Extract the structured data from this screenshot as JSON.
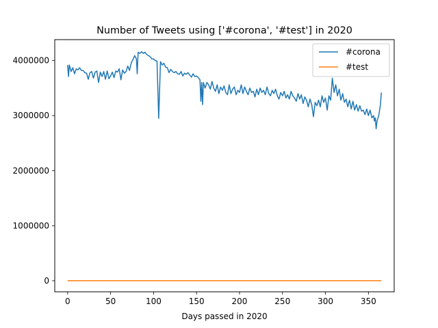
{
  "chart_data": {
    "type": "line",
    "title": "Number of Tweets using ['#corona', '#test'] in 2020",
    "xlabel": "Days passed in 2020",
    "ylabel": "",
    "xlim": [
      -15,
      380
    ],
    "ylim": [
      -200000,
      4380000
    ],
    "xticks": [
      0,
      50,
      100,
      150,
      200,
      250,
      300,
      350
    ],
    "yticks": [
      0,
      1000000,
      2000000,
      3000000,
      4000000
    ],
    "grid": false,
    "legend_position": "top-right",
    "series": [
      {
        "name": "#corona",
        "color": "#1f77b4",
        "points": [
          [
            0,
            3920000
          ],
          [
            1,
            3710000
          ],
          [
            2,
            3920000
          ],
          [
            4,
            3800000
          ],
          [
            6,
            3870000
          ],
          [
            8,
            3760000
          ],
          [
            10,
            3850000
          ],
          [
            12,
            3830000
          ],
          [
            14,
            3870000
          ],
          [
            16,
            3820000
          ],
          [
            18,
            3820000
          ],
          [
            20,
            3780000
          ],
          [
            22,
            3770000
          ],
          [
            24,
            3660000
          ],
          [
            26,
            3780000
          ],
          [
            28,
            3800000
          ],
          [
            30,
            3680000
          ],
          [
            32,
            3790000
          ],
          [
            34,
            3810000
          ],
          [
            36,
            3600000
          ],
          [
            38,
            3790000
          ],
          [
            40,
            3710000
          ],
          [
            42,
            3800000
          ],
          [
            44,
            3660000
          ],
          [
            46,
            3810000
          ],
          [
            48,
            3670000
          ],
          [
            50,
            3720000
          ],
          [
            52,
            3790000
          ],
          [
            54,
            3690000
          ],
          [
            56,
            3810000
          ],
          [
            58,
            3790000
          ],
          [
            60,
            3850000
          ],
          [
            62,
            3650000
          ],
          [
            64,
            3830000
          ],
          [
            66,
            3770000
          ],
          [
            68,
            3800000
          ],
          [
            70,
            3900000
          ],
          [
            72,
            3820000
          ],
          [
            74,
            3960000
          ],
          [
            76,
            4020000
          ],
          [
            78,
            4090000
          ],
          [
            80,
            4030000
          ],
          [
            81,
            3760000
          ],
          [
            82,
            4150000
          ],
          [
            84,
            4130000
          ],
          [
            86,
            4160000
          ],
          [
            88,
            4130000
          ],
          [
            90,
            4150000
          ],
          [
            92,
            4110000
          ],
          [
            94,
            4090000
          ],
          [
            96,
            4070000
          ],
          [
            98,
            4030000
          ],
          [
            100,
            4030000
          ],
          [
            102,
            4000000
          ],
          [
            104,
            3990000
          ],
          [
            106,
            2950000
          ],
          [
            108,
            3980000
          ],
          [
            110,
            3920000
          ],
          [
            112,
            3950000
          ],
          [
            114,
            3880000
          ],
          [
            116,
            3870000
          ],
          [
            118,
            3780000
          ],
          [
            120,
            3840000
          ],
          [
            122,
            3800000
          ],
          [
            124,
            3780000
          ],
          [
            126,
            3800000
          ],
          [
            128,
            3760000
          ],
          [
            130,
            3750000
          ],
          [
            132,
            3800000
          ],
          [
            134,
            3720000
          ],
          [
            136,
            3770000
          ],
          [
            138,
            3750000
          ],
          [
            140,
            3780000
          ],
          [
            142,
            3740000
          ],
          [
            144,
            3700000
          ],
          [
            146,
            3760000
          ],
          [
            148,
            3710000
          ],
          [
            150,
            3720000
          ],
          [
            152,
            3690000
          ],
          [
            154,
            3650000
          ],
          [
            155,
            3260000
          ],
          [
            156,
            3600000
          ],
          [
            157,
            3200000
          ],
          [
            158,
            3600000
          ],
          [
            160,
            3500000
          ],
          [
            162,
            3600000
          ],
          [
            164,
            3560000
          ],
          [
            166,
            3480000
          ],
          [
            168,
            3620000
          ],
          [
            170,
            3500000
          ],
          [
            172,
            3440000
          ],
          [
            174,
            3560000
          ],
          [
            176,
            3400000
          ],
          [
            178,
            3520000
          ],
          [
            180,
            3460000
          ],
          [
            182,
            3540000
          ],
          [
            184,
            3420000
          ],
          [
            186,
            3380000
          ],
          [
            188,
            3560000
          ],
          [
            190,
            3400000
          ],
          [
            192,
            3480000
          ],
          [
            194,
            3520000
          ],
          [
            196,
            3380000
          ],
          [
            198,
            3460000
          ],
          [
            200,
            3420000
          ],
          [
            202,
            3560000
          ],
          [
            204,
            3400000
          ],
          [
            206,
            3520000
          ],
          [
            208,
            3440000
          ],
          [
            210,
            3380000
          ],
          [
            212,
            3500000
          ],
          [
            214,
            3420000
          ],
          [
            216,
            3440000
          ],
          [
            218,
            3340000
          ],
          [
            220,
            3480000
          ],
          [
            222,
            3380000
          ],
          [
            224,
            3500000
          ],
          [
            226,
            3420000
          ],
          [
            228,
            3460000
          ],
          [
            230,
            3380000
          ],
          [
            232,
            3520000
          ],
          [
            234,
            3400000
          ],
          [
            236,
            3360000
          ],
          [
            238,
            3460000
          ],
          [
            240,
            3400000
          ],
          [
            242,
            3480000
          ],
          [
            244,
            3360000
          ],
          [
            246,
            3300000
          ],
          [
            248,
            3420000
          ],
          [
            250,
            3360000
          ],
          [
            252,
            3440000
          ],
          [
            254,
            3320000
          ],
          [
            256,
            3380000
          ],
          [
            258,
            3300000
          ],
          [
            260,
            3440000
          ],
          [
            262,
            3360000
          ],
          [
            264,
            3320000
          ],
          [
            266,
            3260000
          ],
          [
            268,
            3400000
          ],
          [
            270,
            3300000
          ],
          [
            272,
            3380000
          ],
          [
            274,
            3220000
          ],
          [
            276,
            3340000
          ],
          [
            278,
            3280000
          ],
          [
            280,
            3160000
          ],
          [
            282,
            3300000
          ],
          [
            284,
            3200000
          ],
          [
            286,
            2980000
          ],
          [
            288,
            3240000
          ],
          [
            290,
            3180000
          ],
          [
            292,
            3280000
          ],
          [
            294,
            3160000
          ],
          [
            296,
            3360000
          ],
          [
            298,
            3240000
          ],
          [
            300,
            3320000
          ],
          [
            302,
            3100000
          ],
          [
            304,
            3360000
          ],
          [
            306,
            3280000
          ],
          [
            308,
            3680000
          ],
          [
            310,
            3420000
          ],
          [
            312,
            3560000
          ],
          [
            314,
            3360000
          ],
          [
            316,
            3480000
          ],
          [
            318,
            3280000
          ],
          [
            320,
            3400000
          ],
          [
            322,
            3240000
          ],
          [
            324,
            3300000
          ],
          [
            326,
            3160000
          ],
          [
            328,
            3280000
          ],
          [
            330,
            3120000
          ],
          [
            332,
            3260000
          ],
          [
            334,
            3100000
          ],
          [
            336,
            3200000
          ],
          [
            338,
            3080000
          ],
          [
            340,
            3180000
          ],
          [
            342,
            3080000
          ],
          [
            344,
            3100000
          ],
          [
            346,
            3020000
          ],
          [
            348,
            3120000
          ],
          [
            350,
            3000000
          ],
          [
            352,
            3100000
          ],
          [
            354,
            2960000
          ],
          [
            356,
            3000000
          ],
          [
            357,
            2900000
          ],
          [
            358,
            2960000
          ],
          [
            359,
            2760000
          ],
          [
            360,
            2900000
          ],
          [
            362,
            3000000
          ],
          [
            364,
            3200000
          ],
          [
            365,
            3420000
          ]
        ]
      },
      {
        "name": "#test",
        "color": "#ff7f0e",
        "points": [
          [
            0,
            2000
          ],
          [
            100,
            2500
          ],
          [
            200,
            2000
          ],
          [
            300,
            2000
          ],
          [
            365,
            2000
          ]
        ]
      }
    ]
  }
}
